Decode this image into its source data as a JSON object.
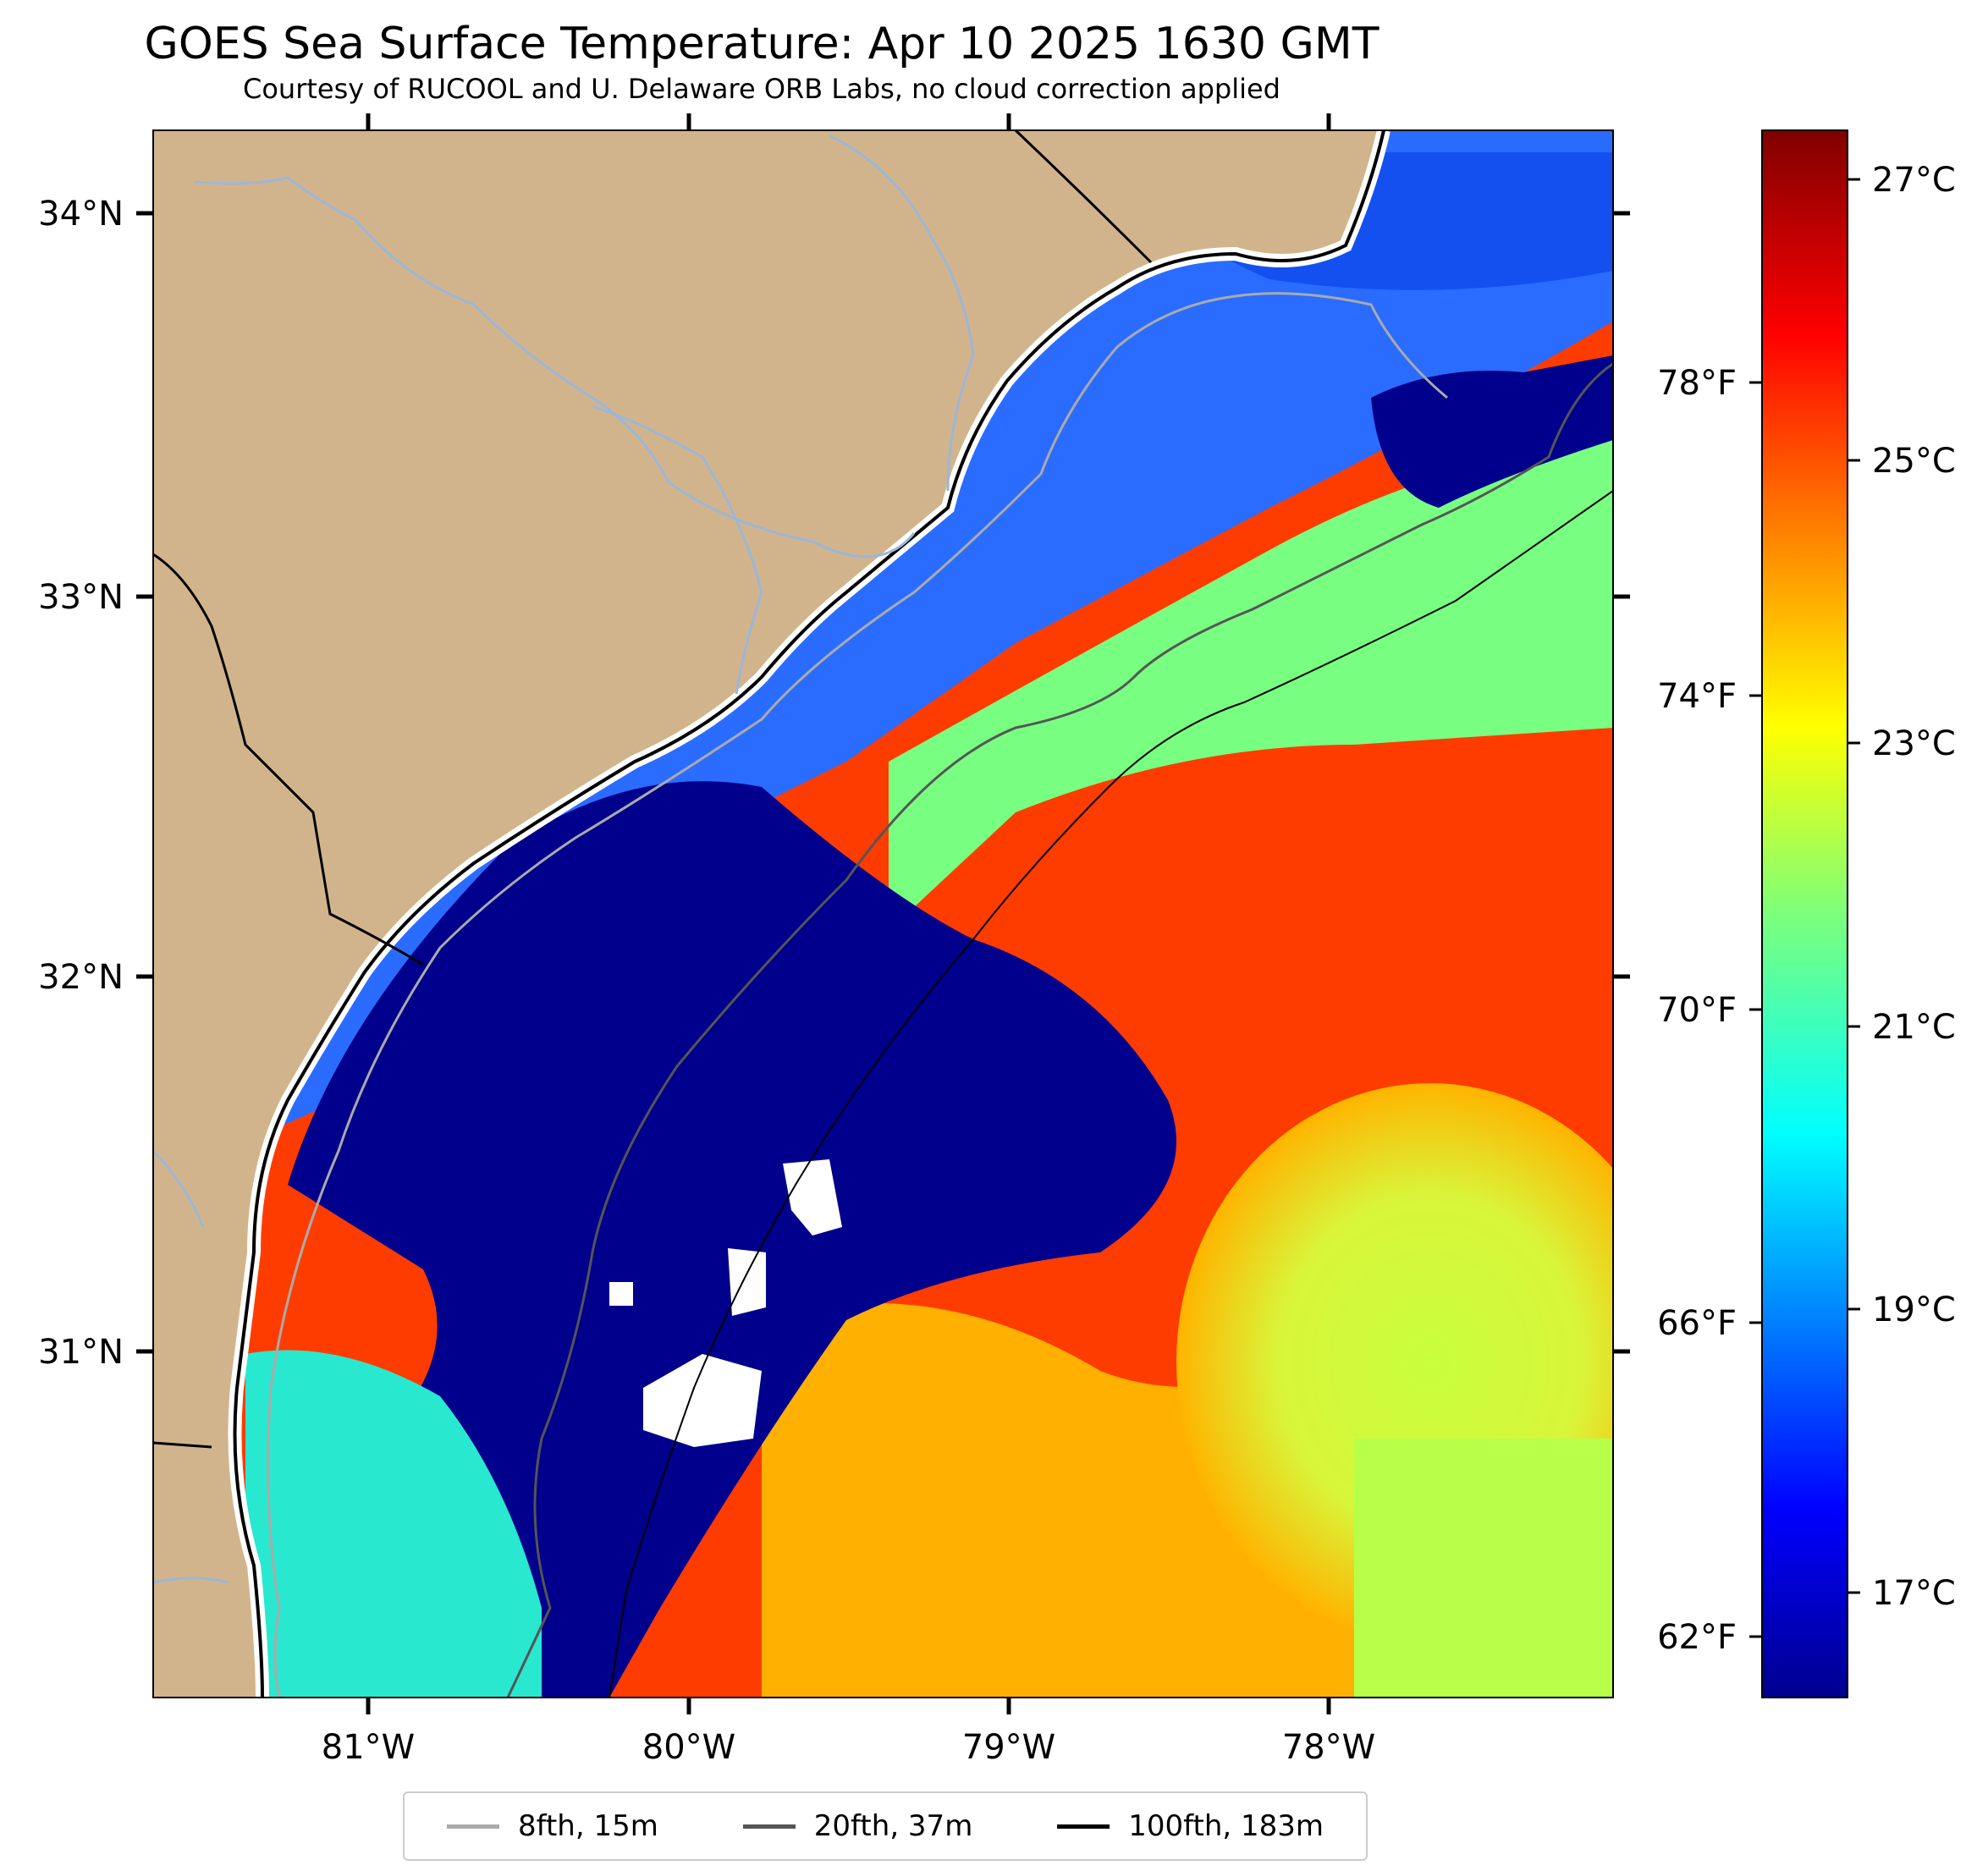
{
  "title": "GOES Sea Surface Temperature: Apr 10 2025 1630 GMT",
  "subtitle": "Courtesy of RUCOOL and U. Delaware ORB Labs, no cloud correction applied",
  "map": {
    "lat_ticks": [
      "34°N",
      "33°N",
      "32°N",
      "31°N"
    ],
    "lon_ticks": [
      "81°W",
      "80°W",
      "79°W",
      "78°W"
    ],
    "land_color": "#d2b48c",
    "feature_names": [
      "coastline",
      "rivers",
      "state-borders",
      "isobath-8fth",
      "isobath-20fth",
      "isobath-100fth",
      "sst-field",
      "cloud-gaps"
    ]
  },
  "colorbar": {
    "colormap": "jet",
    "celsius_ticks": [
      "27°C",
      "25°C",
      "23°C",
      "21°C",
      "19°C",
      "17°C"
    ],
    "fahrenheit_ticks": [
      "78°F",
      "74°F",
      "70°F",
      "66°F",
      "62°F"
    ]
  },
  "legend": {
    "items": [
      {
        "label": "8fth, 15m",
        "color": "#aaaaaa"
      },
      {
        "label": "20fth, 37m",
        "color": "#555555"
      },
      {
        "label": "100fth, 183m",
        "color": "#000000"
      }
    ]
  }
}
